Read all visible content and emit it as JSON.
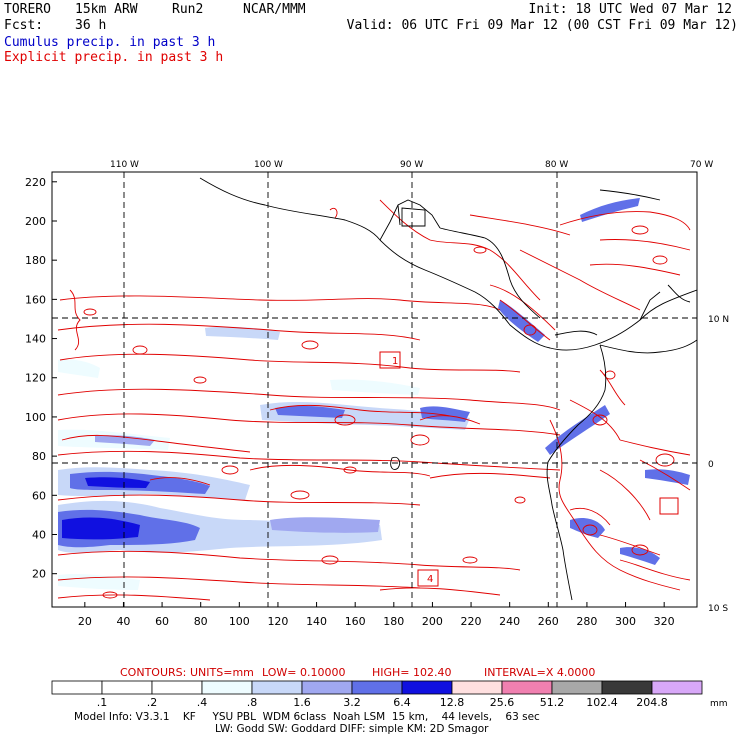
{
  "header": {
    "model": "TORERO",
    "res": "15km ARW",
    "run": "Run2",
    "org": "NCAR/MMM",
    "init": "Init: 18 UTC Wed 07 Mar 12",
    "fcst_label": "Fcst:",
    "fcst_value": "36 h",
    "valid": "Valid: 06 UTC Fri 09 Mar 12 (00 CST Fri 09 Mar 12)",
    "cumulus": "Cumulus precip. in past 3 h",
    "explicit": "Explicit precip. in past 3 h"
  },
  "colors": {
    "cumulus_text": "#0000c8",
    "explicit_text": "#e00000",
    "contour": "#e00000",
    "coast": "#000000"
  },
  "map": {
    "lon_labels": [
      "110 W",
      "100 W",
      "90 W",
      "80 W",
      "70 W"
    ],
    "lat_labels": [
      "10 N",
      "0",
      "10 S"
    ],
    "y_ticks": [
      "220",
      "200",
      "180",
      "160",
      "140",
      "120",
      "100",
      "80",
      "60",
      "40",
      "20"
    ],
    "x_ticks": [
      "20",
      "40",
      "60",
      "80",
      "100",
      "120",
      "140",
      "160",
      "180",
      "200",
      "220",
      "240",
      "260",
      "280",
      "300",
      "320"
    ],
    "box_labels": [
      "1",
      "4"
    ]
  },
  "contour_caption": {
    "label": "CONTOURS:",
    "units": "UNITS=mm",
    "low": "LOW= 0.10000",
    "high": "HIGH= 102.40",
    "interval": "INTERVAL=X 4.0000"
  },
  "colorbar": {
    "labels": [
      ".1",
      ".2",
      ".4",
      ".8",
      "1.6",
      "3.2",
      "6.4",
      "12.8",
      "25.6",
      "51.2",
      "102.4",
      "204.8"
    ],
    "unit": "mm",
    "colors": [
      "#ffffff",
      "#ffffff",
      "#ffffff",
      "#eefcff",
      "#c8d8f8",
      "#a0a8f0",
      "#6070e8",
      "#1010e0",
      "#ffe0e0",
      "#f080b0",
      "#a8a8a8",
      "#383838",
      "#d8a8f8"
    ]
  },
  "model_info": {
    "line1": "Model Info: V3.3.1    KF     YSU PBL  WDM 6class  Noah LSM  15 km,    44 levels,    63 sec",
    "line2": "LW: Godd SW: Goddard DIFF: simple KM: 2D Smagor"
  }
}
